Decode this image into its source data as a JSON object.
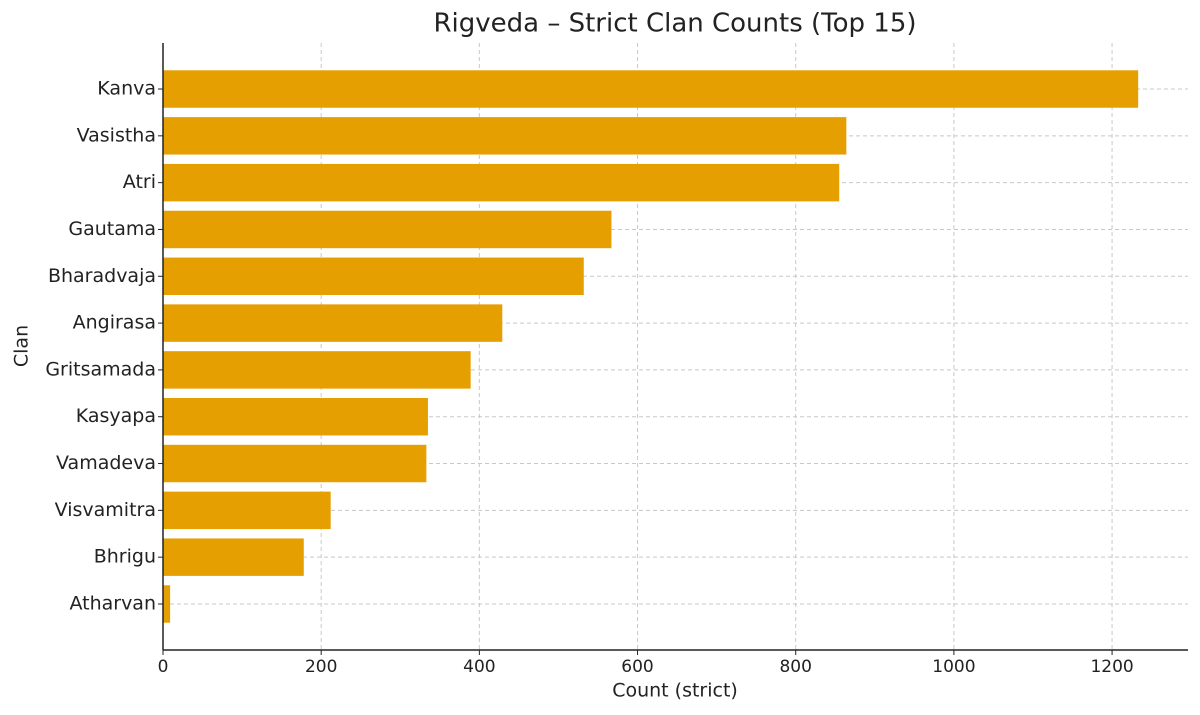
{
  "chart_data": {
    "type": "hbar",
    "title": "Rigveda – Strict Clan Counts (Top 15)",
    "x_label": "Count (strict)",
    "y_label": "Clan",
    "categories": [
      "Kanva",
      "Vasistha",
      "Atri",
      "Gautama",
      "Bharadvaja",
      "Angirasa",
      "Gritsamada",
      "Kasyapa",
      "Vamadeva",
      "Visvamitra",
      "Bhrigu",
      "Atharvan"
    ],
    "values": [
      1233,
      864,
      855,
      567,
      532,
      429,
      389,
      335,
      333,
      212,
      178,
      9
    ],
    "color": "#e69f00",
    "xlim": [
      0,
      1296
    ],
    "xticks": [
      0,
      200,
      400,
      600,
      800,
      1000,
      1200
    ],
    "grid": true
  }
}
